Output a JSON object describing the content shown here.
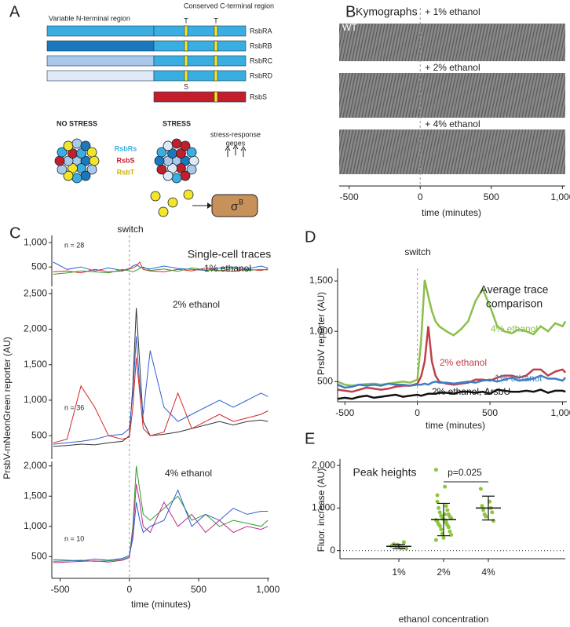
{
  "diagram": {
    "label": "A",
    "n_region": "Variable N-terminal region",
    "c_region": "Conserved C-terminal region",
    "t_marks": [
      "T",
      "T"
    ],
    "s_mark": "S",
    "proteins": [
      {
        "name": "RsbRA",
        "n_color": "#3aaee0",
        "c_color": "#3aaee0"
      },
      {
        "name": "RsbRB",
        "n_color": "#1b78bd",
        "c_color": "#3aaee0"
      },
      {
        "name": "RsbRC",
        "n_color": "#a9c9ea",
        "c_color": "#3aaee0"
      },
      {
        "name": "RsbRD",
        "n_color": "#dfe9f6",
        "c_color": "#3aaee0"
      },
      {
        "name": "RsbS",
        "c_color": "#c1202b"
      }
    ],
    "no_stress": "NO STRESS",
    "stress": "STRESS",
    "legend": [
      {
        "name": "RsbRs",
        "color": "#3aaee0"
      },
      {
        "name": "RsbS",
        "color": "#c1202b"
      },
      {
        "name": "RsbT",
        "color": "#c7b300"
      }
    ],
    "genes": [
      "stress-response",
      "genes"
    ],
    "sigma": "σ",
    "sigma_sup": "B"
  },
  "chart_data": [
    {
      "type": "kymograph",
      "label": "B",
      "title": "Kymographs",
      "strain": "WT",
      "panels": [
        "+ 1% ethanol",
        "+ 2% ethanol",
        "+ 4% ethanol"
      ],
      "xlim": [
        -570,
        1020
      ],
      "xticks": [
        -500,
        0,
        500,
        {
          "value": 1000,
          "label": "1,000"
        }
      ],
      "vline": 0,
      "xlabel": "time (minutes)"
    },
    {
      "type": "line",
      "label": "C",
      "title": "Single-cell traces",
      "subtitle": "1% ethanol",
      "note": "n = 28",
      "annotation": "switch",
      "vline": 0,
      "xlim": [
        -560,
        1010
      ],
      "ylim": [
        100,
        1150
      ],
      "yticks": [
        500,
        {
          "value": 1000,
          "label": "1,000"
        }
      ],
      "x": [
        -550,
        -450,
        -350,
        -250,
        -150,
        -50,
        0,
        25,
        50,
        75,
        100,
        150,
        250,
        350,
        450,
        550,
        650,
        750,
        850,
        950,
        1000
      ],
      "series": [
        {
          "color": "#2f5fd0",
          "values": [
            600,
            450,
            500,
            420,
            480,
            430,
            470,
            520,
            550,
            500,
            480,
            460,
            520,
            470,
            450,
            430,
            480,
            500,
            460,
            520,
            480
          ]
        },
        {
          "color": "#d62728",
          "values": [
            400,
            420,
            380,
            450,
            400,
            420,
            460,
            480,
            520,
            600,
            450,
            420,
            400,
            450,
            420,
            480,
            430,
            410,
            450,
            430,
            460
          ]
        },
        {
          "color": "#2ca02c",
          "values": [
            350,
            380,
            420,
            400,
            380,
            450,
            420,
            400,
            430,
            470,
            500,
            430,
            460,
            410,
            480,
            440,
            420,
            470,
            430,
            450,
            440
          ]
        }
      ]
    },
    {
      "type": "line",
      "subtitle": "2% ethanol",
      "note": "n = 36",
      "vline": 0,
      "ylabel": "PrsbV-mNeonGreen reporter (AU)",
      "xlim": [
        -560,
        1010
      ],
      "ylim": [
        170,
        2570
      ],
      "yticks": [
        500,
        {
          "value": 1000,
          "label": "1,000"
        },
        {
          "value": 1500,
          "label": "1,500"
        },
        {
          "value": 2000,
          "label": "2,000"
        },
        {
          "value": 2500,
          "label": "2,500"
        }
      ],
      "x": [
        -550,
        -450,
        -350,
        -250,
        -150,
        -50,
        0,
        25,
        50,
        75,
        100,
        150,
        250,
        350,
        450,
        550,
        650,
        750,
        850,
        950,
        1000
      ],
      "series": [
        {
          "color": "#333333",
          "values": [
            350,
            360,
            380,
            370,
            400,
            420,
            500,
            1200,
            2300,
            1500,
            700,
            500,
            520,
            550,
            600,
            650,
            700,
            650,
            700,
            720,
            700
          ]
        },
        {
          "color": "#d62728",
          "values": [
            400,
            450,
            1200,
            900,
            500,
            450,
            480,
            900,
            1600,
            1100,
            600,
            500,
            550,
            1100,
            600,
            700,
            800,
            700,
            750,
            800,
            850
          ]
        },
        {
          "color": "#2f5fd0",
          "values": [
            380,
            400,
            420,
            450,
            500,
            520,
            600,
            1100,
            1900,
            1200,
            800,
            1700,
            900,
            700,
            800,
            900,
            1000,
            900,
            1000,
            1100,
            1050
          ]
        }
      ]
    },
    {
      "type": "line",
      "subtitle": "4% ethanol",
      "note": "n = 10",
      "vline": 0,
      "xlabel": "time (minutes)",
      "xlim": [
        -560,
        1010
      ],
      "ylim": [
        140,
        2075
      ],
      "xticks": [
        -500,
        0,
        500,
        {
          "value": 1000,
          "label": "1,000"
        }
      ],
      "yticks": [
        500,
        {
          "value": 1000,
          "label": "1,000"
        },
        {
          "value": 1500,
          "label": "1,500"
        },
        {
          "value": 2000,
          "label": "2,000"
        }
      ],
      "x": [
        -550,
        -450,
        -350,
        -250,
        -150,
        -50,
        0,
        25,
        50,
        75,
        100,
        150,
        250,
        350,
        450,
        550,
        650,
        750,
        850,
        950,
        1000
      ],
      "series": [
        {
          "color": "#2ca02c",
          "values": [
            420,
            430,
            440,
            420,
            430,
            450,
            500,
            1000,
            2000,
            1600,
            1200,
            1100,
            1300,
            1500,
            1100,
            1200,
            1000,
            1100,
            1050,
            1000,
            1100
          ]
        },
        {
          "color": "#c03090",
          "values": [
            400,
            410,
            420,
            430,
            410,
            440,
            480,
            900,
            1700,
            1400,
            1000,
            900,
            1400,
            1000,
            1200,
            900,
            1100,
            900,
            1000,
            950,
            1000
          ]
        },
        {
          "color": "#2f5fd0",
          "values": [
            450,
            440,
            430,
            460,
            440,
            470,
            520,
            800,
            1400,
            1100,
            900,
            1000,
            1100,
            1600,
            1000,
            1200,
            1100,
            1300,
            1200,
            1250,
            1250
          ]
        }
      ]
    },
    {
      "type": "line",
      "label": "D",
      "title": [
        "Average trace",
        "comparison"
      ],
      "annotation": "switch",
      "vline": 0,
      "xlabel": "time (minutes)",
      "ylabel": "PrsbV reporter (AU)",
      "xlim": [
        -550,
        1030
      ],
      "ylim": [
        300,
        1625
      ],
      "xticks": [
        -500,
        0,
        500,
        {
          "value": 1000,
          "label": "1,000"
        }
      ],
      "yticks": [
        500,
        {
          "value": 1000,
          "label": "1,000"
        },
        {
          "value": 1500,
          "label": "1,500"
        }
      ],
      "x": [
        -550,
        -500,
        -450,
        -400,
        -350,
        -300,
        -250,
        -200,
        -150,
        -100,
        -50,
        0,
        25,
        50,
        75,
        100,
        125,
        150,
        200,
        250,
        300,
        350,
        400,
        450,
        500,
        550,
        600,
        650,
        700,
        750,
        800,
        850,
        900,
        950,
        1000,
        1020
      ],
      "series": [
        {
          "name": "4% ethanol",
          "color": "#8cbf4a",
          "values": [
            500,
            470,
            460,
            470,
            475,
            480,
            470,
            480,
            490,
            500,
            490,
            520,
            900,
            1510,
            1350,
            1200,
            1100,
            1050,
            1000,
            960,
            1020,
            1100,
            1300,
            1420,
            1250,
            1050,
            1000,
            980,
            1020,
            1000,
            970,
            1050,
            1000,
            1080,
            1050,
            1100
          ]
        },
        {
          "name": "2% ethanol",
          "color": "#c0404a",
          "values": [
            420,
            410,
            400,
            420,
            440,
            430,
            420,
            430,
            450,
            460,
            460,
            480,
            550,
            700,
            1050,
            700,
            560,
            500,
            480,
            470,
            480,
            490,
            520,
            520,
            510,
            540,
            560,
            560,
            540,
            560,
            620,
            620,
            560,
            600,
            620,
            590
          ]
        },
        {
          "name": "1% ethanol",
          "color": "#3f7fc0",
          "values": [
            470,
            440,
            450,
            470,
            460,
            470,
            460,
            480,
            470,
            470,
            460,
            470,
            470,
            480,
            470,
            490,
            500,
            490,
            490,
            480,
            490,
            500,
            490,
            510,
            520,
            500,
            520,
            540,
            510,
            520,
            530,
            560,
            530,
            530,
            510,
            540
          ]
        },
        {
          "name": "2% ethanol, ΔrsbU",
          "color": "#111111",
          "values": [
            330,
            340,
            330,
            350,
            360,
            340,
            350,
            360,
            370,
            350,
            360,
            370,
            360,
            370,
            380,
            380,
            380,
            390,
            390,
            380,
            400,
            400,
            390,
            400,
            380,
            420,
            410,
            400,
            400,
            410,
            400,
            420,
            390,
            410,
            410,
            400
          ]
        }
      ]
    },
    {
      "type": "dot",
      "label": "E",
      "title": "Peak heights",
      "p_label": "p=0.025",
      "xlabel": "ethanol concentration",
      "ylabel": "Fluor. increase (AU)",
      "color": "#8dc63f",
      "hline": 0,
      "categories": [
        "1%",
        "2%",
        "4%"
      ],
      "ylim": [
        -190,
        2150
      ],
      "yticks": [
        0,
        {
          "value": 1000,
          "label": "1,000"
        },
        {
          "value": 2000,
          "label": "2,000"
        }
      ],
      "points": [
        [
          110,
          90,
          130,
          60,
          150,
          80,
          120,
          200,
          100,
          70,
          140,
          50
        ],
        [
          1900,
          1500,
          1150,
          1050,
          1000,
          950,
          900,
          850,
          820,
          800,
          780,
          760,
          740,
          720,
          700,
          680,
          650,
          620,
          600,
          580,
          550,
          500,
          450,
          400,
          370,
          300,
          250,
          850,
          1300,
          680
        ],
        [
          1450,
          1150,
          1050,
          1000,
          950,
          900,
          850,
          700,
          800
        ]
      ],
      "means": [
        100,
        730,
        1000
      ],
      "errors": [
        50,
        380,
        280
      ]
    }
  ]
}
